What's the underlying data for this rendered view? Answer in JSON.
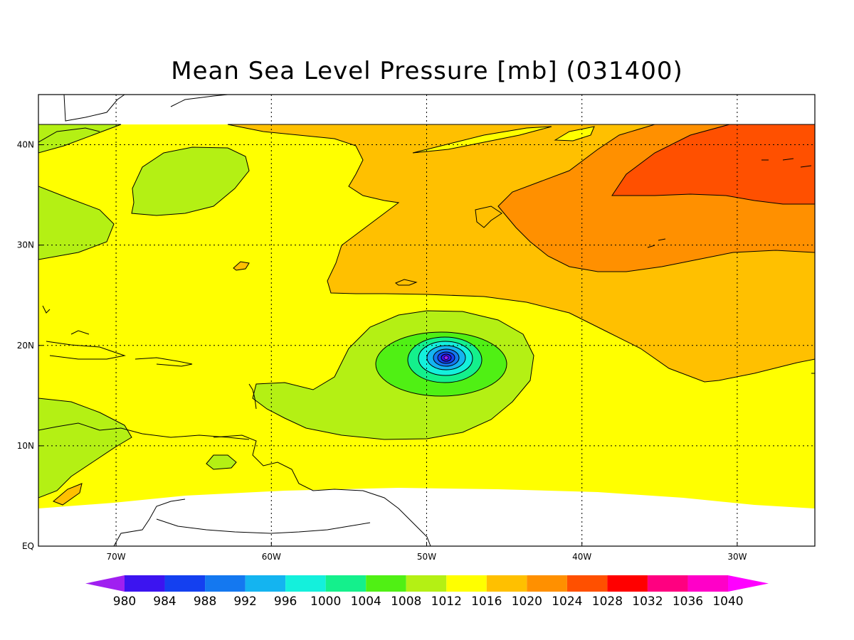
{
  "title": "Mean Sea Level Pressure [mb] (031400)",
  "axes": {
    "x_ticks": [
      "70W",
      "60W",
      "50W",
      "40W",
      "30W"
    ],
    "y_ticks": [
      "EQ",
      "10N",
      "20N",
      "30N",
      "40N"
    ],
    "lon_range": [
      -75,
      -25
    ],
    "lat_range": [
      0,
      45
    ]
  },
  "colorbar": {
    "labels": [
      "980",
      "984",
      "988",
      "992",
      "996",
      "1000",
      "1004",
      "1008",
      "1012",
      "1016",
      "1020",
      "1024",
      "1028",
      "1032",
      "1036",
      "1040"
    ],
    "colors": [
      "#a020f0",
      "#3c14f0",
      "#1440f0",
      "#1478f0",
      "#14b4f0",
      "#14f0dc",
      "#14f08c",
      "#50f014",
      "#b4f014",
      "#ffff00",
      "#ffc000",
      "#ff9000",
      "#ff5000",
      "#ff0000",
      "#ff0080",
      "#ff00c8",
      "#ff00ff"
    ]
  },
  "fields": {
    "background_color": "#ffff00",
    "low_center": {
      "lon": -49,
      "lat": 18.8
    }
  }
}
